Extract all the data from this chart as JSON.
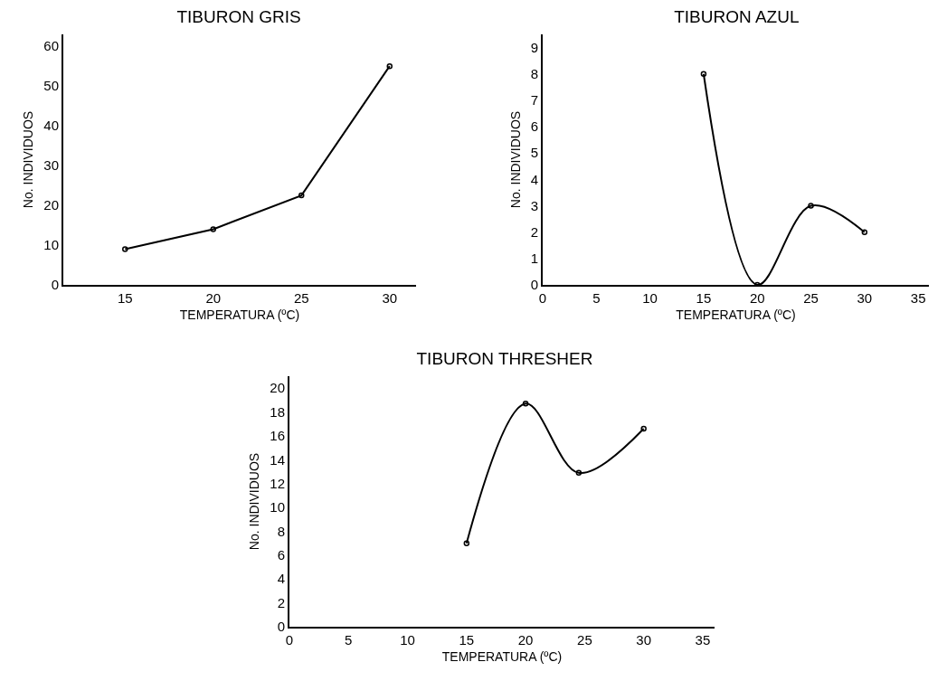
{
  "chart_data": [
    {
      "type": "line",
      "title": "TIBURON GRIS",
      "xlabel": "TEMPERATURA (ºC)",
      "ylabel": "No. INDIVIDUOS",
      "categories": [
        "15",
        "20",
        "25",
        "30"
      ],
      "series": [
        {
          "color": "#000000",
          "values": [
            9,
            14,
            22.5,
            55
          ]
        }
      ],
      "ylim": [
        0,
        63
      ],
      "yticks": [
        0,
        10,
        20,
        30,
        40,
        50,
        60
      ],
      "grid": false,
      "marker": "circle",
      "line_style": "solid"
    },
    {
      "type": "line",
      "title": "TIBURON AZUL",
      "xlabel": "TEMPERATURA (ºC)",
      "ylabel": "No. INDIVIDUOS",
      "x": [
        15,
        20,
        25,
        30
      ],
      "series": [
        {
          "color": "#000000",
          "values": [
            8,
            0,
            3,
            2
          ]
        }
      ],
      "xlim": [
        0,
        36
      ],
      "xticks": [
        0,
        5,
        10,
        15,
        20,
        25,
        30,
        35
      ],
      "ylim": [
        0,
        9.5
      ],
      "yticks": [
        0,
        1,
        2,
        3,
        4,
        5,
        6,
        7,
        8,
        9
      ],
      "grid": false,
      "marker": "circle",
      "line_style": "solid"
    },
    {
      "type": "line",
      "title": "TIBURON THRESHER",
      "xlabel": "TEMPERATURA (ºC)",
      "ylabel": "No. INDIVIDUOS",
      "x": [
        15,
        20,
        24.5,
        30
      ],
      "series": [
        {
          "color": "#000000",
          "values": [
            7,
            18.7,
            12.9,
            16.6
          ]
        }
      ],
      "xlim": [
        0,
        36
      ],
      "xticks": [
        0,
        5,
        10,
        15,
        20,
        25,
        30,
        35
      ],
      "ylim": [
        0,
        21
      ],
      "yticks": [
        0,
        2,
        4,
        6,
        8,
        10,
        12,
        14,
        16,
        18,
        20
      ],
      "grid": false,
      "marker": "circle",
      "line_style": "solid"
    }
  ]
}
